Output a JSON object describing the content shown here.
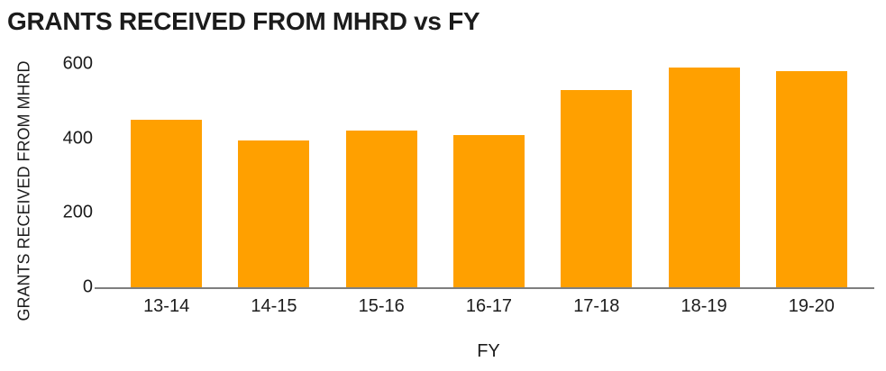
{
  "chart_data": {
    "type": "bar",
    "title": "GRANTS RECEIVED FROM MHRD vs FY",
    "xlabel": "FY",
    "ylabel": "GRANTS RECEIVED FROM MHRD",
    "categories": [
      "13-14",
      "14-15",
      "15-16",
      "16-17",
      "17-18",
      "18-19",
      "19-20"
    ],
    "values": [
      450,
      395,
      420,
      410,
      530,
      590,
      580
    ],
    "ylim": [
      0,
      600
    ],
    "yticks": [
      0,
      200,
      400,
      600
    ],
    "grid": "off",
    "legend": "none",
    "bar_color": "#FFA000",
    "axis_line_color": "#7f7f7f",
    "text_color": "#1c1c1c"
  }
}
